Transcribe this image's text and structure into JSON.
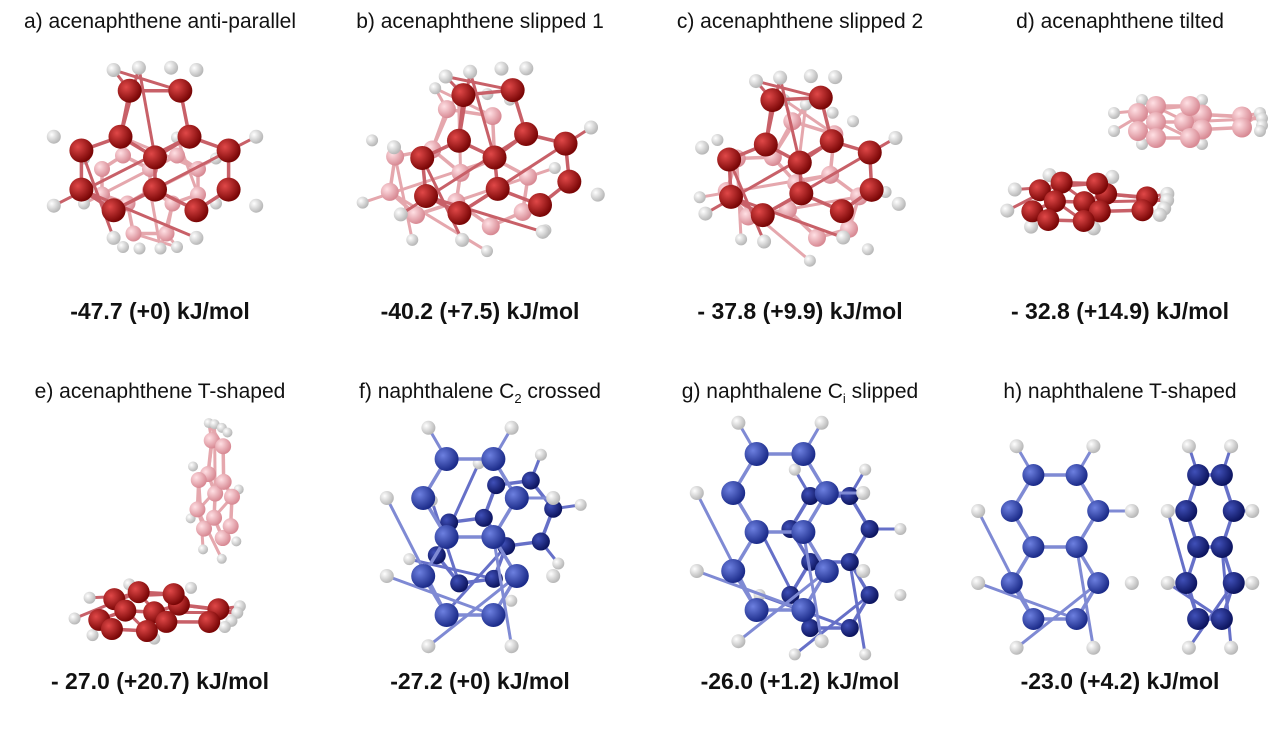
{
  "panels": [
    {
      "label_pre": "a) acenaphthene anti-parallel",
      "label_sub": "",
      "label_post": "",
      "energy": "-47.7 (+0) kJ/mol",
      "molecule": "acenaphthene",
      "color": "#b01818"
    },
    {
      "label_pre": "b) acenaphthene slipped 1",
      "label_sub": "",
      "label_post": "",
      "energy": "-40.2 (+7.5) kJ/mol",
      "molecule": "acenaphthene",
      "color": "#b01818"
    },
    {
      "label_pre": "c) acenaphthene slipped 2",
      "label_sub": "",
      "label_post": "",
      "energy": "- 37.8 (+9.9) kJ/mol",
      "molecule": "acenaphthene",
      "color": "#b01818"
    },
    {
      "label_pre": "d) acenaphthene tilted",
      "label_sub": "",
      "label_post": "",
      "energy": "- 32.8 (+14.9) kJ/mol",
      "molecule": "acenaphthene",
      "color": "#b01818"
    },
    {
      "label_pre": "e) acenaphthene T-shaped",
      "label_sub": "",
      "label_post": "",
      "energy": "- 27.0 (+20.7) kJ/mol",
      "molecule": "acenaphthene",
      "color": "#b01818"
    },
    {
      "label_pre": "f) naphthalene C",
      "label_sub": "2",
      "label_post": " crossed",
      "energy": "-27.2 (+0) kJ/mol",
      "molecule": "naphthalene",
      "color": "#2f45b0"
    },
    {
      "label_pre": "g) naphthalene C",
      "label_sub": "i",
      "label_post": " slipped",
      "energy": "-26.0 (+1.2) kJ/mol",
      "molecule": "naphthalene",
      "color": "#2f45b0"
    },
    {
      "label_pre": "h) naphthalene T-shaped",
      "label_sub": "",
      "label_post": "",
      "energy": "-23.0 (+4.2) kJ/mol",
      "molecule": "naphthalene",
      "color": "#2f45b0"
    }
  ]
}
